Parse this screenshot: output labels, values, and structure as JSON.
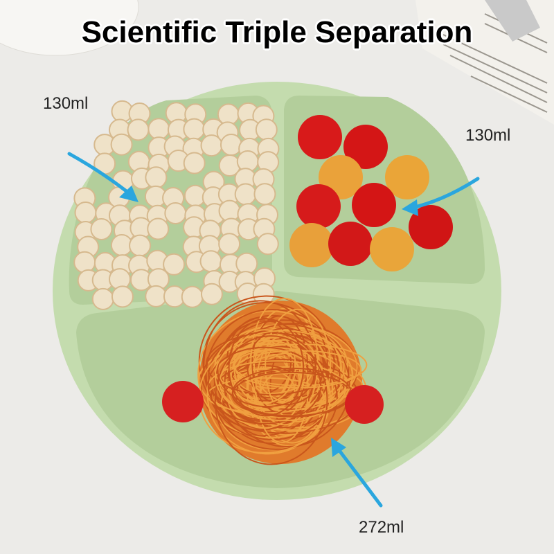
{
  "title": "Scientific Triple Separation",
  "labels": {
    "top_left": "130ml",
    "top_right": "130ml",
    "bottom": "272ml"
  },
  "colors": {
    "plate": "#c4dcae",
    "compartment": "#b4cf9c",
    "arrow": "#2aa6de",
    "background": "#ecebe8"
  }
}
